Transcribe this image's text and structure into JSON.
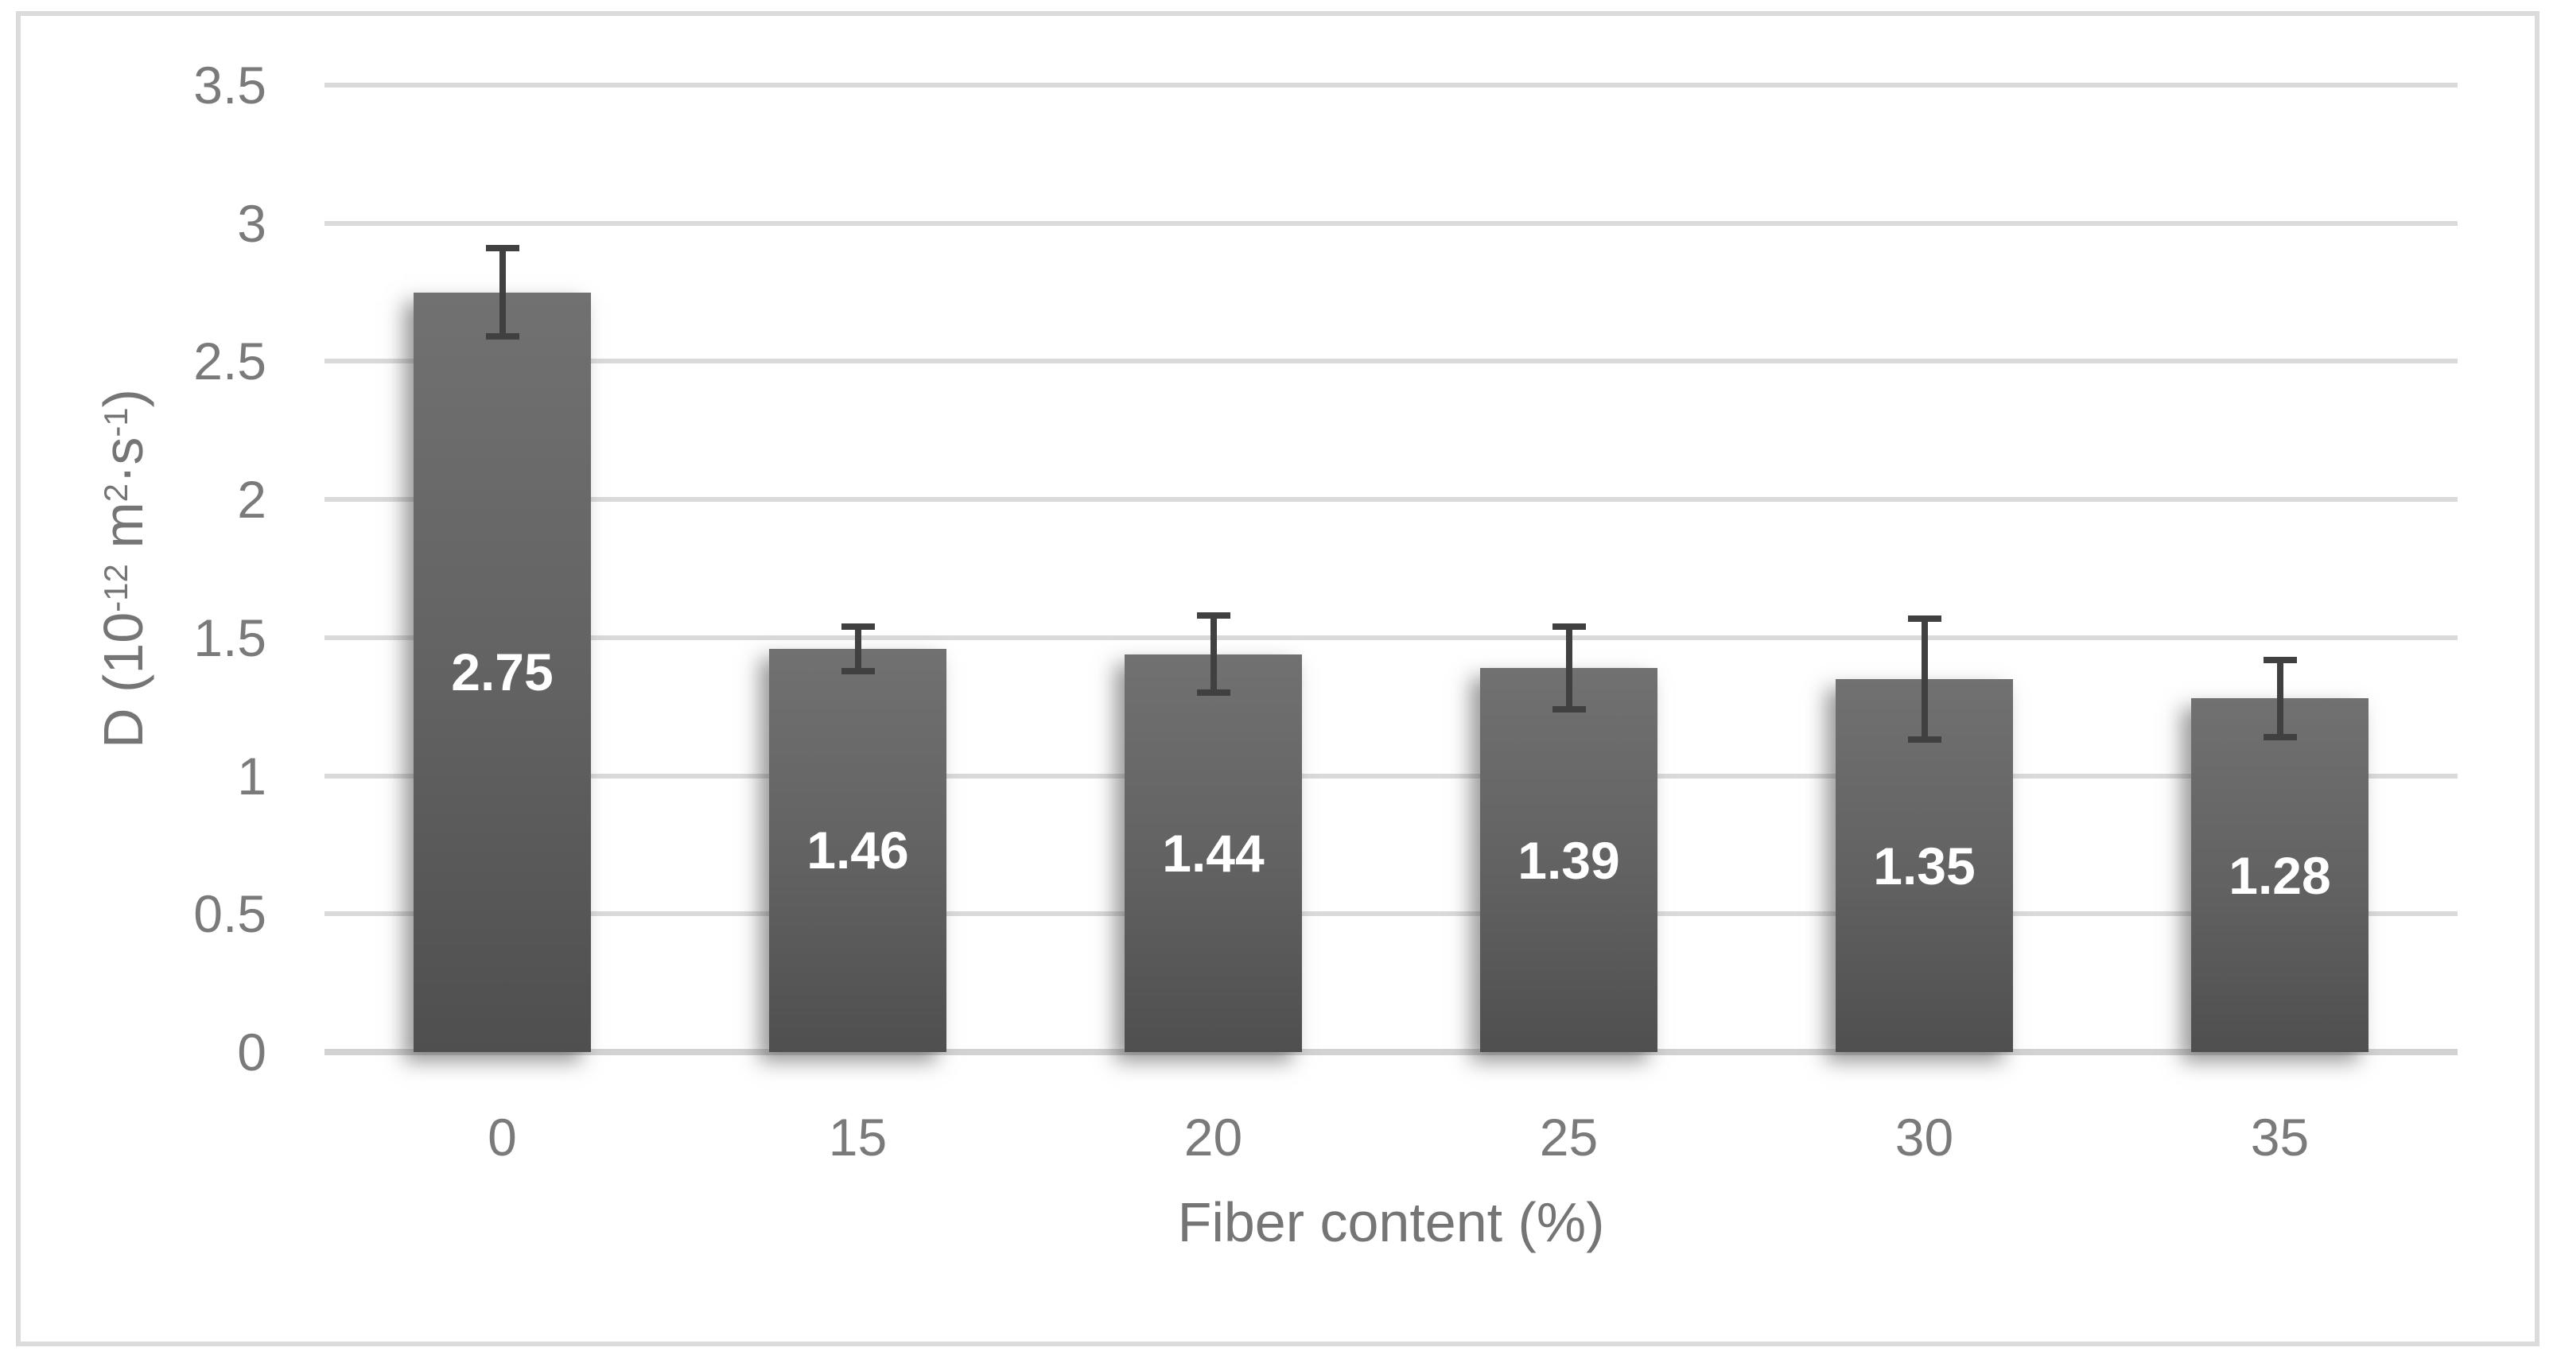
{
  "chart_data": {
    "type": "bar",
    "title": "",
    "categories": [
      "0",
      "15",
      "20",
      "25",
      "30",
      "35"
    ],
    "values": [
      2.75,
      1.46,
      1.44,
      1.39,
      1.35,
      1.28
    ],
    "data_labels": [
      "2.75",
      "1.46",
      "1.44",
      "1.39",
      "1.35",
      "1.28"
    ],
    "errors": [
      0.16,
      0.08,
      0.14,
      0.15,
      0.22,
      0.14
    ],
    "xlabel": "Fiber content (%)",
    "ylabel": "D (10⁻¹² m²·s⁻¹)",
    "ylabel_parts": [
      {
        "t": "D (10"
      },
      {
        "t": "-12",
        "sup": true
      },
      {
        "t": " m"
      },
      {
        "t": "2",
        "sup": true
      },
      {
        "t": "·s"
      },
      {
        "t": "-1",
        "sup": true
      },
      {
        "t": ")"
      }
    ],
    "yticks": [
      "0",
      "0.5",
      "1",
      "1.5",
      "2",
      "2.5",
      "3",
      "3.5"
    ],
    "ylim": [
      0,
      3.5
    ],
    "ytick_step": 0.5,
    "grid": true,
    "legend": false,
    "colors": {
      "bar_top": "#717171",
      "bar_bottom": "#4f4f4f",
      "error_bar": "#404040",
      "gridline": "#dadada",
      "axis_line": "#d2d2d2",
      "tick_text": "#7a7a7a",
      "axis_title_text": "#757575",
      "data_label_text": "#ffffff",
      "border": "#dbdbdb",
      "background": "#ffffff"
    }
  }
}
